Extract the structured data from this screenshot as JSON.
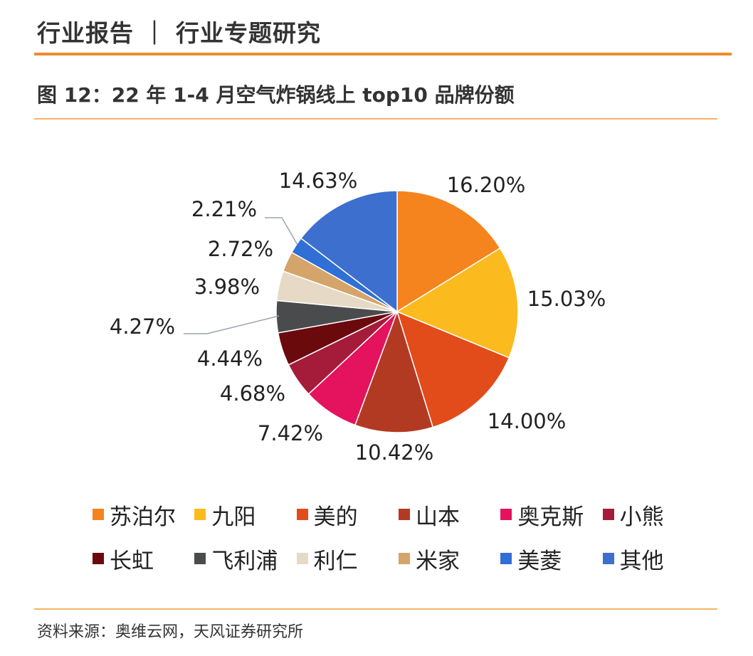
{
  "header": {
    "title": "行业报告 ｜ 行业专题研究"
  },
  "figure": {
    "title": "图 12：22 年 1-4 月空气炸锅线上 top10 品牌份额"
  },
  "footer": {
    "source": "资料来源：奥维云网，天风证券研究所"
  },
  "chart_data": {
    "type": "pie",
    "title": "图 12：22 年 1-4 月空气炸锅线上 top10 品牌份额",
    "unit": "%",
    "start": "12 o'clock, clockwise",
    "slices": [
      {
        "name": "苏泊尔",
        "value": 16.2,
        "label": "16.20%",
        "color": "#f5841f"
      },
      {
        "name": "九阳",
        "value": 15.03,
        "label": "15.03%",
        "color": "#fbbb1e"
      },
      {
        "name": "美的",
        "value": 14.0,
        "label": "14.00%",
        "color": "#e24c1b"
      },
      {
        "name": "山本",
        "value": 10.42,
        "label": "10.42%",
        "color": "#b33a22"
      },
      {
        "name": "奥克斯",
        "value": 7.42,
        "label": "7.42%",
        "color": "#e5125d"
      },
      {
        "name": "小熊",
        "value": 4.68,
        "label": "4.68%",
        "color": "#a51c3a"
      },
      {
        "name": "长虹",
        "value": 4.44,
        "label": "4.44%",
        "color": "#6b0a0d"
      },
      {
        "name": "飞利浦",
        "value": 4.27,
        "label": "4.27%",
        "color": "#4a4b4d"
      },
      {
        "name": "利仁",
        "value": 3.98,
        "label": "3.98%",
        "color": "#e6dac6"
      },
      {
        "name": "米家",
        "value": 2.72,
        "label": "2.72%",
        "color": "#d4a46a"
      },
      {
        "name": "美菱",
        "value": 2.21,
        "label": "2.21%",
        "color": "#2f6fd6"
      },
      {
        "name": "其他",
        "value": 14.63,
        "label": "14.63%",
        "color": "#3d6fcf"
      }
    ],
    "legend": {
      "position": "bottom",
      "rows": 2
    }
  }
}
